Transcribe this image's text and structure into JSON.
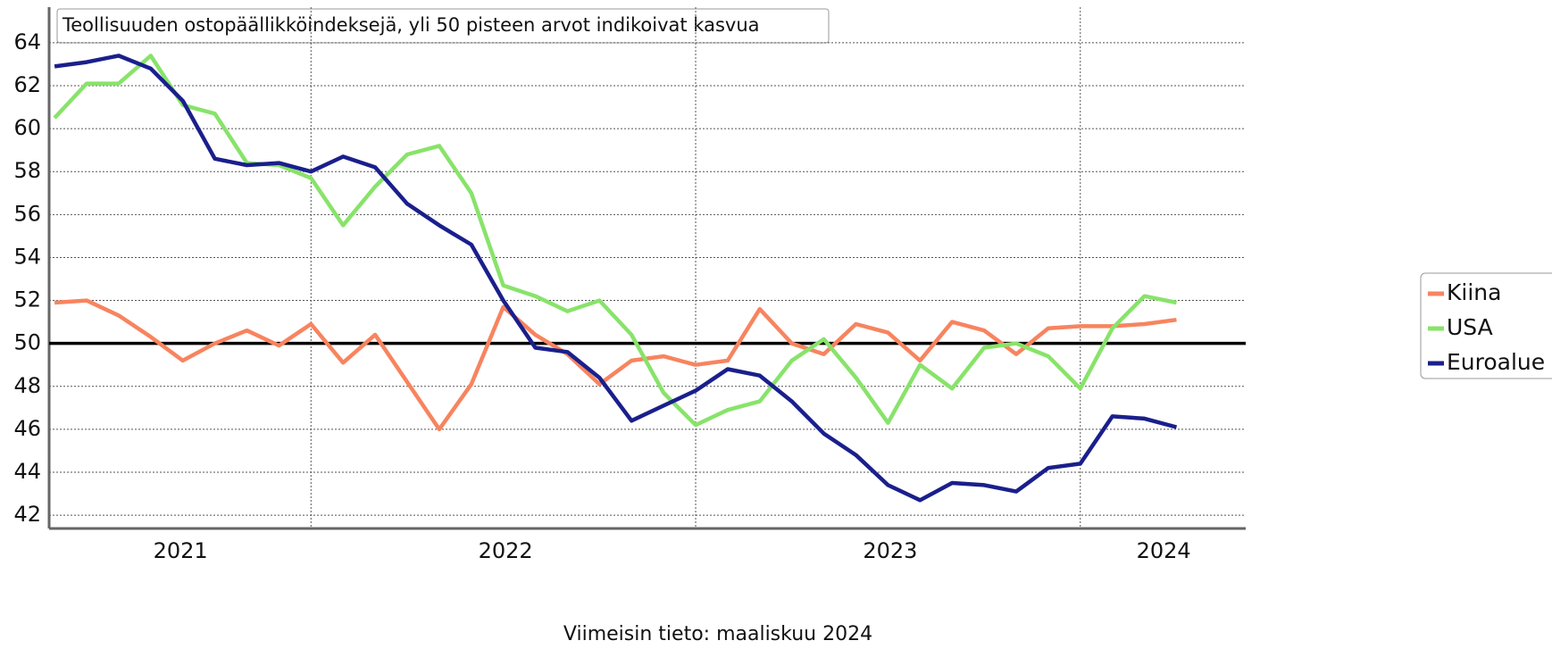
{
  "chart_data": {
    "type": "line",
    "title": "Teollisuuden ostopäällikköindeksejä, yli 50 pisteen arvot indikoivat kasvua",
    "footnote": "Viimeisin tieto: maaliskuu 2024",
    "x": [
      0,
      1,
      2,
      3,
      4,
      5,
      6,
      7,
      8,
      9,
      10,
      11,
      12,
      13,
      14,
      15,
      16,
      17,
      18,
      19,
      20,
      21,
      22,
      23,
      24,
      25,
      26,
      27,
      28,
      29,
      30,
      31,
      32,
      33,
      34,
      35
    ],
    "xlim": [
      -0.17,
      37.16
    ],
    "xgrid": [
      8,
      20,
      32
    ],
    "year_labels": [
      {
        "value": 3.93,
        "label": "2021"
      },
      {
        "value": 14.07,
        "label": "2022"
      },
      {
        "value": 26.07,
        "label": "2023"
      },
      {
        "value": 34.6,
        "label": "2024"
      }
    ],
    "ylim": [
      41.38,
      65.66
    ],
    "yticks": [
      42,
      44,
      46,
      48,
      50,
      52,
      54,
      56,
      58,
      60,
      62,
      64
    ],
    "reference_line": 50,
    "grid": true,
    "legend": "right",
    "series": [
      {
        "name": "Kiina",
        "color": "#f7845f",
        "values": [
          51.9,
          52.0,
          51.3,
          50.3,
          49.2,
          50.0,
          50.6,
          49.9,
          50.9,
          49.1,
          50.4,
          48.2,
          46.0,
          48.1,
          51.7,
          50.4,
          49.5,
          48.1,
          49.2,
          49.4,
          49.0,
          49.2,
          51.6,
          50.0,
          49.5,
          50.9,
          50.5,
          49.2,
          51.0,
          50.6,
          49.5,
          50.7,
          50.8,
          50.8,
          50.9,
          51.1
        ]
      },
      {
        "name": "USA",
        "color": "#88e36a",
        "values": [
          60.5,
          62.1,
          62.1,
          63.4,
          61.1,
          60.7,
          58.4,
          58.3,
          57.7,
          55.5,
          57.3,
          58.8,
          59.2,
          57.0,
          52.7,
          52.2,
          51.5,
          52.0,
          50.4,
          47.7,
          46.2,
          46.9,
          47.3,
          49.2,
          50.2,
          48.4,
          46.3,
          49.0,
          47.9,
          49.8,
          50.0,
          49.4,
          47.9,
          50.7,
          52.2,
          51.9
        ]
      },
      {
        "name": "Euroalue",
        "color": "#1a1f8c",
        "values": [
          62.9,
          63.1,
          63.4,
          62.8,
          61.3,
          58.6,
          58.3,
          58.4,
          58.0,
          58.7,
          58.2,
          56.5,
          55.5,
          54.6,
          52.0,
          49.8,
          49.6,
          48.4,
          46.4,
          47.1,
          47.8,
          48.8,
          48.5,
          47.3,
          45.8,
          44.8,
          43.4,
          42.7,
          43.5,
          43.4,
          43.1,
          44.2,
          44.4,
          46.6,
          46.5,
          46.1
        ]
      }
    ]
  }
}
